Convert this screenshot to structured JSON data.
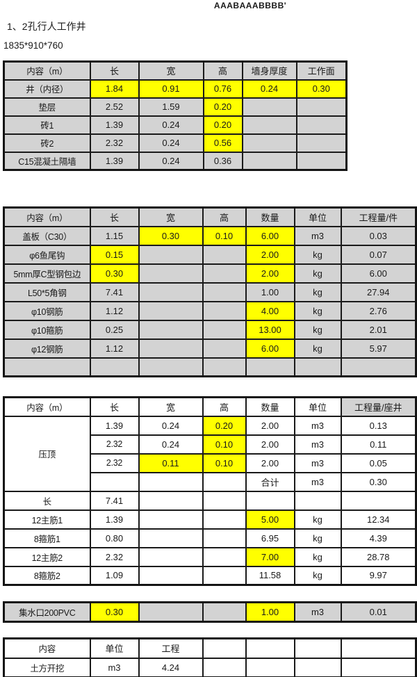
{
  "page": {
    "header_text": "AAABAAABBBB'",
    "title": "1、2孔行人工作井",
    "size_label": "1835*910*760"
  },
  "colors": {
    "highlight_yellow": "#ffff00",
    "cell_gray": "#d3d3d3",
    "border_black": "#1a1a1a",
    "background": "#ffffff"
  },
  "tables": {
    "table1": {
      "default_bg": "gray",
      "rows": [
        {
          "header": true,
          "cells": [
            {
              "t": "内容（m）"
            },
            {
              "t": "长"
            },
            {
              "t": "宽"
            },
            {
              "t": "高"
            },
            {
              "t": "墙身厚度"
            },
            {
              "t": "工作面"
            }
          ]
        },
        {
          "cells": [
            {
              "t": "井（内径）"
            },
            {
              "t": "1.84",
              "hl": 1
            },
            {
              "t": "0.91",
              "hl": 1
            },
            {
              "t": "0.76",
              "hl": 1
            },
            {
              "t": "0.24",
              "hl": 1
            },
            {
              "t": "0.30",
              "hl": 1
            }
          ]
        },
        {
          "cells": [
            {
              "t": "垫层"
            },
            {
              "t": "2.52"
            },
            {
              "t": "1.59"
            },
            {
              "t": "0.20",
              "hl": 1
            },
            {
              "t": ""
            },
            {
              "t": ""
            }
          ]
        },
        {
          "cells": [
            {
              "t": "砖1"
            },
            {
              "t": "1.39"
            },
            {
              "t": "0.24"
            },
            {
              "t": "0.20",
              "hl": 1
            },
            {
              "t": ""
            },
            {
              "t": ""
            }
          ]
        },
        {
          "cells": [
            {
              "t": "砖2"
            },
            {
              "t": "2.32"
            },
            {
              "t": "0.24"
            },
            {
              "t": "0.56",
              "hl": 1
            },
            {
              "t": ""
            },
            {
              "t": ""
            }
          ]
        },
        {
          "cells": [
            {
              "t": "C15混凝土隔墙"
            },
            {
              "t": "1.39"
            },
            {
              "t": "0.24"
            },
            {
              "t": "0.36"
            },
            {
              "t": ""
            },
            {
              "t": ""
            }
          ]
        }
      ]
    },
    "table2": {
      "default_bg": "gray",
      "rows": [
        {
          "header": true,
          "cells": [
            {
              "t": "内容（m）"
            },
            {
              "t": "长"
            },
            {
              "t": "宽"
            },
            {
              "t": "高"
            },
            {
              "t": "数量"
            },
            {
              "t": "单位"
            },
            {
              "t": "工程量/件"
            }
          ]
        },
        {
          "cells": [
            {
              "t": "盖板（C30）"
            },
            {
              "t": "1.15"
            },
            {
              "t": "0.30",
              "hl": 1
            },
            {
              "t": "0.10",
              "hl": 1
            },
            {
              "t": "6.00",
              "hl": 1
            },
            {
              "t": "m3"
            },
            {
              "t": "0.03"
            }
          ]
        },
        {
          "cells": [
            {
              "t": "φ6鱼尾钩"
            },
            {
              "t": "0.15",
              "hl": 1
            },
            {
              "t": ""
            },
            {
              "t": ""
            },
            {
              "t": "2.00",
              "hl": 1
            },
            {
              "t": "kg"
            },
            {
              "t": "0.07"
            }
          ]
        },
        {
          "cells": [
            {
              "t": "5mm厚C型钢包边"
            },
            {
              "t": "0.30",
              "hl": 1
            },
            {
              "t": ""
            },
            {
              "t": ""
            },
            {
              "t": "2.00",
              "hl": 1
            },
            {
              "t": "kg"
            },
            {
              "t": "6.00"
            }
          ]
        },
        {
          "cells": [
            {
              "t": "L50*5角钢"
            },
            {
              "t": "7.41"
            },
            {
              "t": ""
            },
            {
              "t": ""
            },
            {
              "t": "1.00"
            },
            {
              "t": "kg"
            },
            {
              "t": "27.94"
            }
          ]
        },
        {
          "cells": [
            {
              "t": "φ10钢筋"
            },
            {
              "t": "1.12"
            },
            {
              "t": ""
            },
            {
              "t": ""
            },
            {
              "t": "4.00",
              "hl": 1
            },
            {
              "t": "kg"
            },
            {
              "t": "2.76"
            }
          ]
        },
        {
          "cells": [
            {
              "t": "φ10箍筋"
            },
            {
              "t": "0.25"
            },
            {
              "t": ""
            },
            {
              "t": ""
            },
            {
              "t": "13.00",
              "hl": 1
            },
            {
              "t": "kg"
            },
            {
              "t": "2.01"
            }
          ]
        },
        {
          "cells": [
            {
              "t": "φ12钢筋"
            },
            {
              "t": "1.12"
            },
            {
              "t": ""
            },
            {
              "t": ""
            },
            {
              "t": "6.00",
              "hl": 1
            },
            {
              "t": "kg"
            },
            {
              "t": "5.97"
            }
          ]
        },
        {
          "cells": [
            {
              "t": ""
            },
            {
              "t": ""
            },
            {
              "t": ""
            },
            {
              "t": ""
            },
            {
              "t": ""
            },
            {
              "t": ""
            },
            {
              "t": ""
            }
          ]
        }
      ]
    },
    "table3": {
      "default_bg": "white",
      "rows": [
        {
          "header": true,
          "cells": [
            {
              "t": "内容（m）"
            },
            {
              "t": "长"
            },
            {
              "t": "宽"
            },
            {
              "t": "高"
            },
            {
              "t": "数量"
            },
            {
              "t": "单位"
            },
            {
              "t": "工程量/座井",
              "bg": "gray"
            }
          ]
        },
        {
          "cells": [
            {
              "t": "压顶",
              "rowspan": 4
            },
            {
              "t": "1.39"
            },
            {
              "t": "0.24"
            },
            {
              "t": "0.20",
              "hl": 1
            },
            {
              "t": "2.00"
            },
            {
              "t": "m3"
            },
            {
              "t": "0.13"
            }
          ]
        },
        {
          "cells": [
            {
              "t": "2.32"
            },
            {
              "t": "0.24"
            },
            {
              "t": "0.10",
              "hl": 1
            },
            {
              "t": "2.00"
            },
            {
              "t": "m3"
            },
            {
              "t": "0.11"
            }
          ]
        },
        {
          "cells": [
            {
              "t": "2.32"
            },
            {
              "t": "0.11",
              "hl": 1
            },
            {
              "t": "0.10",
              "hl": 1
            },
            {
              "t": "2.00"
            },
            {
              "t": "m3"
            },
            {
              "t": "0.05"
            }
          ]
        },
        {
          "cells": [
            {
              "t": ""
            },
            {
              "t": ""
            },
            {
              "t": ""
            },
            {
              "t": "合计"
            },
            {
              "t": "m3"
            },
            {
              "t": "0.30"
            }
          ]
        },
        {
          "cells": [
            {
              "t": "长"
            },
            {
              "t": "7.41"
            },
            {
              "t": ""
            },
            {
              "t": ""
            },
            {
              "t": ""
            },
            {
              "t": ""
            },
            {
              "t": ""
            }
          ]
        },
        {
          "cells": [
            {
              "t": "12主筋1"
            },
            {
              "t": "1.39"
            },
            {
              "t": ""
            },
            {
              "t": ""
            },
            {
              "t": "5.00",
              "hl": 1
            },
            {
              "t": "kg"
            },
            {
              "t": "12.34"
            }
          ]
        },
        {
          "cells": [
            {
              "t": "8箍筋1"
            },
            {
              "t": "0.80"
            },
            {
              "t": ""
            },
            {
              "t": ""
            },
            {
              "t": "6.95"
            },
            {
              "t": "kg"
            },
            {
              "t": "4.39"
            }
          ]
        },
        {
          "cells": [
            {
              "t": "12主筋2"
            },
            {
              "t": "2.32"
            },
            {
              "t": ""
            },
            {
              "t": ""
            },
            {
              "t": "7.00",
              "hl": 1
            },
            {
              "t": "kg"
            },
            {
              "t": "28.78"
            }
          ]
        },
        {
          "cells": [
            {
              "t": "8箍筋2"
            },
            {
              "t": "1.09"
            },
            {
              "t": ""
            },
            {
              "t": ""
            },
            {
              "t": "11.58"
            },
            {
              "t": "kg"
            },
            {
              "t": "9.97"
            }
          ]
        }
      ]
    },
    "pvc": {
      "default_bg": "gray",
      "rows": [
        {
          "cells": [
            {
              "t": "集水口200PVC"
            },
            {
              "t": "0.30",
              "hl": 1
            },
            {
              "t": ""
            },
            {
              "t": ""
            },
            {
              "t": "1.00",
              "hl": 1
            },
            {
              "t": "m3"
            },
            {
              "t": "0.01"
            }
          ]
        }
      ]
    },
    "bottom": {
      "default_bg": "white",
      "rows": [
        {
          "header": true,
          "cells": [
            {
              "t": "内容"
            },
            {
              "t": "单位"
            },
            {
              "t": "工程"
            },
            {
              "t": ""
            },
            {
              "t": ""
            },
            {
              "t": ""
            },
            {
              "t": ""
            }
          ]
        },
        {
          "cells": [
            {
              "t": "土方开挖"
            },
            {
              "t": "m3"
            },
            {
              "t": "4.24"
            },
            {
              "t": ""
            },
            {
              "t": ""
            },
            {
              "t": ""
            },
            {
              "t": ""
            }
          ]
        }
      ]
    }
  }
}
